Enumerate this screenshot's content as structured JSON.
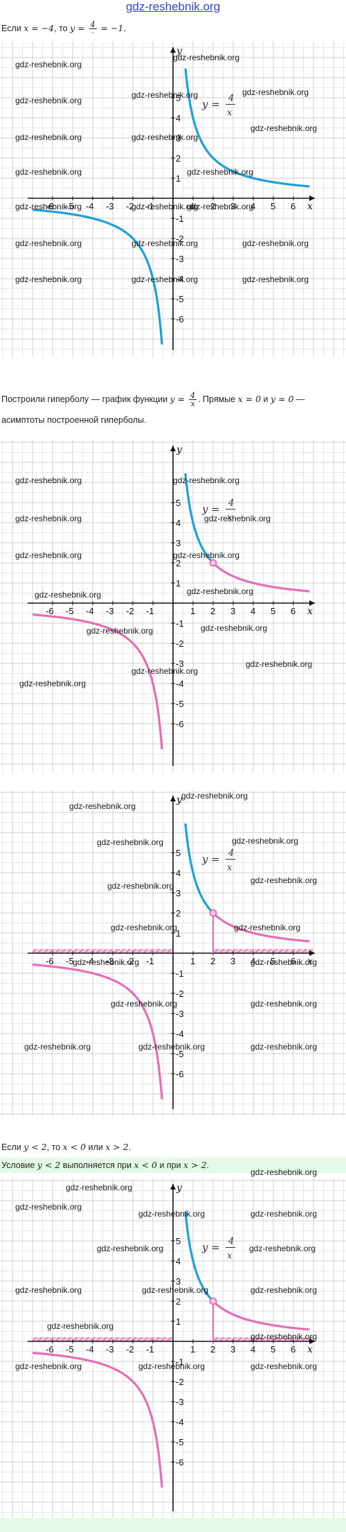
{
  "header": {
    "site_link": "gdz-reshebnik.org"
  },
  "watermark": "gdz-reshebnik.org",
  "texts": {
    "line1_a": "Если ",
    "line1_x": "x",
    "line1_eq1": " = −4",
    "line1_b": ", то ",
    "line1_y": "y",
    "line1_eq2": " = ",
    "line1_num": "4",
    "line1_den": "·",
    "line1_eq3": " = −1.",
    "line2_a": "Построили гиперболу — график функции ",
    "line2_y": "y",
    "line2_eq": " = ",
    "line2_num": "4",
    "line2_den": "x",
    "line2_b": ". Прямые ",
    "line2_x0": "x = 0",
    "line2_c": " и ",
    "line2_y0": "y = 0",
    "line2_d": " —",
    "line3": "асимптоты построенной гиперболы.",
    "line4_a": "Если ",
    "line4_m1": "y < 2",
    "line4_b": ", то ",
    "line4_m2": "x < 0",
    "line4_c": " или ",
    "line4_m3": "x > 2",
    "line4_d": ".",
    "line5_a": "Условие ",
    "line5_m1": "y < 2",
    "line5_b": " выполняется при ",
    "line5_m2": "x < 0",
    "line5_c": " и при ",
    "line5_m3": "x > 2",
    "line5_d": "."
  },
  "graph_labels": {
    "x_axis": "x",
    "y_axis": "y",
    "func_lhs": "y =",
    "func_num": "4",
    "func_den": "x",
    "x_ticks": [
      "-6",
      "-5",
      "-4",
      "-3",
      "-2",
      "-1",
      "1",
      "2",
      "3",
      "4",
      "5",
      "6"
    ],
    "y_ticks_pos": [
      "1",
      "2",
      "3",
      "4",
      "5"
    ],
    "y_ticks_neg": [
      "-1",
      "-2",
      "-3",
      "-4",
      "-5",
      "-6"
    ]
  },
  "chart_data": [
    {
      "type": "line",
      "title": "",
      "series": [
        {
          "name": "y = 4/x",
          "formula": "y = 4/x"
        }
      ],
      "xlim": [
        -7,
        7
      ],
      "ylim": [
        -7,
        6
      ],
      "color": "#1ba0d8",
      "grid": true
    },
    {
      "type": "line",
      "title": "",
      "series": [
        {
          "name": "y = 4/x",
          "formula": "y = 4/x"
        }
      ],
      "highlight_point": {
        "x": 2,
        "y": 2
      },
      "highlight_color": "#e66db5",
      "xlim": [
        -7,
        7
      ],
      "ylim": [
        -7,
        6
      ],
      "grid": true
    },
    {
      "type": "line",
      "title": "",
      "series": [
        {
          "name": "y = 4/x",
          "formula": "y = 4/x"
        }
      ],
      "highlight_point": {
        "x": 2,
        "y": 2
      },
      "hatched_intervals": [
        [
          -7,
          0
        ],
        [
          2,
          7
        ]
      ],
      "xlim": [
        -7,
        7
      ],
      "ylim": [
        -7,
        6
      ],
      "grid": true
    },
    {
      "type": "line",
      "title": "",
      "series": [
        {
          "name": "y = 4/x",
          "formula": "y = 4/x"
        }
      ],
      "highlight_point": {
        "x": 2,
        "y": 2
      },
      "hatched_intervals": [
        [
          -7,
          0
        ],
        [
          2,
          7
        ]
      ],
      "xlim": [
        -7,
        7
      ],
      "ylim": [
        -7,
        6
      ],
      "grid": true
    }
  ],
  "colors": {
    "blue": "#1ba0d8",
    "pink": "#e66db5",
    "grid": "#d7d7d7",
    "highlight": "#e4fae8",
    "link": "#2d46d8"
  }
}
